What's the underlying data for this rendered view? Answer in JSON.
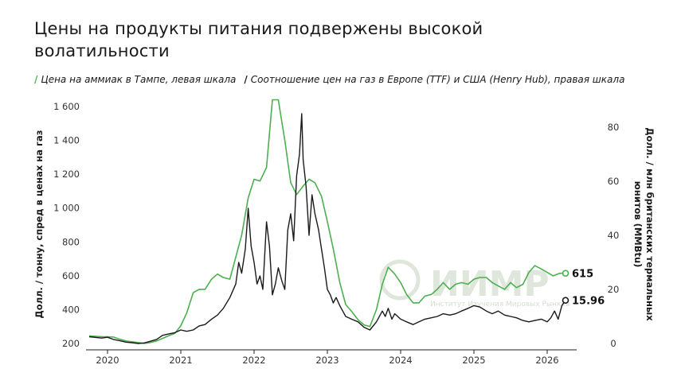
{
  "title": "Цены на продукты питания подвержены высокой волатильности",
  "legend": [
    {
      "marker": "/",
      "label": "Цена на аммиак в Тампе, левая шкала",
      "color": "#4caf50"
    },
    {
      "marker": "/",
      "label": "Соотношение цен на газ в Европе (TTF) и США (Henry Hub), правая шкала",
      "color": "#1a1a1a"
    }
  ],
  "watermark": {
    "text": "ИИМР",
    "subtitle": "Институт Изучения Мировых Рынков"
  },
  "chart_data": {
    "type": "line",
    "ylabel_left": "Долл. / тонну, спред в ценах на газ",
    "ylabel_right": "Долл. / млн британских термальных юнитов (MMBtu)",
    "x_ticks": [
      "2020",
      "2021",
      "2022",
      "2023",
      "2024",
      "2025",
      "2026"
    ],
    "ylim_left": [
      200,
      1650
    ],
    "yticks_left": [
      200,
      400,
      600,
      800,
      1000,
      1200,
      1400,
      1600
    ],
    "ylim_right": [
      0,
      88
    ],
    "yticks_right": [
      0,
      20,
      40,
      60,
      80
    ],
    "grid": false,
    "series": [
      {
        "name": "Цена на аммиак в Тампе, левая шкала",
        "axis": "left",
        "color": "#4caf50",
        "x": [
          2019.75,
          2019.92,
          2020.0,
          2020.08,
          2020.17,
          2020.25,
          2020.42,
          2020.5,
          2020.58,
          2020.67,
          2020.75,
          2020.83,
          2020.92,
          2021.0,
          2021.08,
          2021.17,
          2021.25,
          2021.33,
          2021.42,
          2021.5,
          2021.58,
          2021.67,
          2021.75,
          2021.83,
          2021.92,
          2022.0,
          2022.08,
          2022.17,
          2022.25,
          2022.33,
          2022.42,
          2022.5,
          2022.58,
          2022.67,
          2022.75,
          2022.83,
          2022.92,
          2023.0,
          2023.08,
          2023.17,
          2023.25,
          2023.33,
          2023.42,
          2023.5,
          2023.58,
          2023.67,
          2023.75,
          2023.83,
          2023.92,
          2024.0,
          2024.08,
          2024.17,
          2024.25,
          2024.33,
          2024.42,
          2024.5,
          2024.58,
          2024.67,
          2024.75,
          2024.83,
          2024.92,
          2025.0,
          2025.08,
          2025.17,
          2025.25,
          2025.33,
          2025.42,
          2025.5,
          2025.58,
          2025.67,
          2025.75,
          2025.83,
          2025.92,
          2026.0,
          2026.08,
          2026.17,
          2026.25
        ],
        "values": [
          245,
          240,
          240,
          238,
          225,
          215,
          205,
          200,
          205,
          215,
          230,
          245,
          260,
          305,
          380,
          500,
          520,
          520,
          580,
          610,
          590,
          580,
          710,
          840,
          1060,
          1170,
          1160,
          1240,
          1640,
          1640,
          1400,
          1150,
          1080,
          1130,
          1170,
          1150,
          1070,
          920,
          760,
          560,
          430,
          390,
          340,
          310,
          300,
          400,
          550,
          650,
          610,
          560,
          490,
          440,
          440,
          480,
          490,
          520,
          560,
          520,
          550,
          560,
          550,
          580,
          590,
          590,
          560,
          540,
          520,
          560,
          530,
          550,
          620,
          660,
          640,
          620,
          600,
          615,
          615
        ]
      },
      {
        "name": "Соотношение цен на газ в Европе (TTF) и США (Henry Hub), правая шкала",
        "axis": "right",
        "color": "#1a1a1a",
        "x": [
          2019.75,
          2019.92,
          2020.0,
          2020.08,
          2020.17,
          2020.25,
          2020.33,
          2020.42,
          2020.5,
          2020.58,
          2020.67,
          2020.75,
          2020.83,
          2020.92,
          2021.0,
          2021.08,
          2021.17,
          2021.25,
          2021.33,
          2021.42,
          2021.5,
          2021.58,
          2021.67,
          2021.75,
          2021.79,
          2021.83,
          2021.88,
          2021.92,
          2021.96,
          2022.0,
          2022.04,
          2022.08,
          2022.12,
          2022.17,
          2022.21,
          2022.25,
          2022.29,
          2022.33,
          2022.38,
          2022.42,
          2022.46,
          2022.5,
          2022.54,
          2022.58,
          2022.62,
          2022.65,
          2022.67,
          2022.71,
          2022.75,
          2022.79,
          2022.83,
          2022.88,
          2022.92,
          2022.96,
          2023.0,
          2023.04,
          2023.08,
          2023.12,
          2023.17,
          2023.21,
          2023.25,
          2023.33,
          2023.42,
          2023.5,
          2023.58,
          2023.67,
          2023.75,
          2023.79,
          2023.83,
          2023.88,
          2023.92,
          2024.0,
          2024.08,
          2024.17,
          2024.25,
          2024.33,
          2024.42,
          2024.5,
          2024.58,
          2024.67,
          2024.75,
          2024.83,
          2024.92,
          2025.0,
          2025.08,
          2025.17,
          2025.25,
          2025.33,
          2025.42,
          2025.5,
          2025.58,
          2025.67,
          2025.75,
          2025.83,
          2025.92,
          2026.0,
          2026.05,
          2026.1,
          2026.15,
          2026.2,
          2026.25
        ],
        "values": [
          2.5,
          2.0,
          2.3,
          1.5,
          1.0,
          0.5,
          0.3,
          0.0,
          0.2,
          0.8,
          1.5,
          3.0,
          3.5,
          4.0,
          5.0,
          4.5,
          5.0,
          6.5,
          7.0,
          9.0,
          10.5,
          13.0,
          17.0,
          22.0,
          30.0,
          26.0,
          35.0,
          50.0,
          36.0,
          30.0,
          22.0,
          25.0,
          20.0,
          45.0,
          36.0,
          18.0,
          22.0,
          28.0,
          23.0,
          20.0,
          42.0,
          48.0,
          38.0,
          62.0,
          70.0,
          85.0,
          68.0,
          58.0,
          40.0,
          55.0,
          48.0,
          42.0,
          35.0,
          28.0,
          20.0,
          18.0,
          15.0,
          17.0,
          14.0,
          12.0,
          10.0,
          9.0,
          8.0,
          6.0,
          5.0,
          8.0,
          12.0,
          10.0,
          13.0,
          9.0,
          11.0,
          9.0,
          8.0,
          7.0,
          8.0,
          9.0,
          9.5,
          10.0,
          11.0,
          10.5,
          11.0,
          12.0,
          13.0,
          14.0,
          13.5,
          12.0,
          11.0,
          12.0,
          10.5,
          10.0,
          9.5,
          8.5,
          8.0,
          8.5,
          9.0,
          8.0,
          9.5,
          12.0,
          9.0,
          14.0,
          15.96
        ]
      }
    ],
    "end_labels": {
      "left": "615",
      "right": "15.96"
    }
  }
}
